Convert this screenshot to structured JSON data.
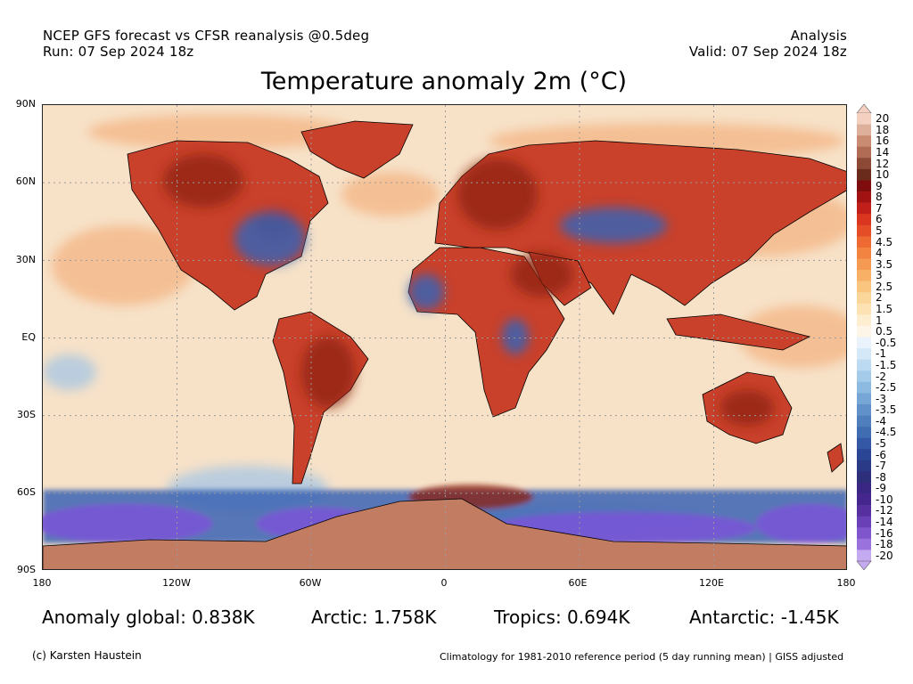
{
  "header": {
    "line1_left": "NCEP GFS forecast vs CFSR reanalysis @0.5deg",
    "line2_left": "Run: 07 Sep 2024 18z",
    "line1_right": "Analysis",
    "line2_right": "Valid: 07 Sep 2024 18z"
  },
  "title": "Temperature anomaly 2m (°C)",
  "map": {
    "lat_labels": [
      "90N",
      "60N",
      "30N",
      "EQ",
      "30S",
      "60S",
      "90S"
    ],
    "lon_labels": [
      "180",
      "120W",
      "60W",
      "0",
      "60E",
      "120E",
      "180"
    ],
    "colors": {
      "ocean": "#f7e2c8",
      "continent": "#c9412b",
      "hot": "#8e2010",
      "cold": "#3a63b4",
      "very_cold": "#7a57d6",
      "antarctica": "#c27c62",
      "border": "#000000",
      "grid": "#9a9a9a"
    }
  },
  "colorbar": {
    "labels": [
      "20",
      "18",
      "16",
      "14",
      "12",
      "10",
      "9",
      "8",
      "7",
      "6",
      "5",
      "4.5",
      "4",
      "3.5",
      "3",
      "2.5",
      "2",
      "1.5",
      "1",
      "0.5",
      "-0.5",
      "-1",
      "-1.5",
      "-2",
      "-2.5",
      "-3",
      "-3.5",
      "-4",
      "-4.5",
      "-5",
      "-6",
      "-7",
      "-8",
      "-9",
      "-10",
      "-12",
      "-14",
      "-16",
      "-18",
      "-20"
    ],
    "colors": [
      "#f3d0c0",
      "#deb09c",
      "#c98c73",
      "#b06c54",
      "#8c4a36",
      "#6a2a1c",
      "#800d0d",
      "#a31212",
      "#c01f1a",
      "#d9351f",
      "#e44d25",
      "#ee6a32",
      "#f28340",
      "#f59a52",
      "#f7b066",
      "#f9c57f",
      "#fbd69a",
      "#fde3b3",
      "#fdeecf",
      "#fdf6e8",
      "#eaf3fb",
      "#d4e8f7",
      "#bcdbf2",
      "#a5cbea",
      "#8cbae1",
      "#75a6d6",
      "#6092c9",
      "#4f7fbd",
      "#406cb1",
      "#3558a6",
      "#2b4694",
      "#2a3a86",
      "#2e2f7a",
      "#392783",
      "#45268f",
      "#56309f",
      "#6a40b6",
      "#8056cc",
      "#9a72de",
      "#c4aaf0"
    ]
  },
  "stats": {
    "global": "Anomaly global: 0.838K",
    "arctic": "Arctic: 1.758K",
    "tropics": "Tropics: 0.694K",
    "antarctic": "Antarctic: -1.45K"
  },
  "footer": {
    "credit": "(c) Karsten Haustein",
    "note": "Climatology for 1981-2010 reference period (5 day running mean) | GISS adjusted"
  }
}
